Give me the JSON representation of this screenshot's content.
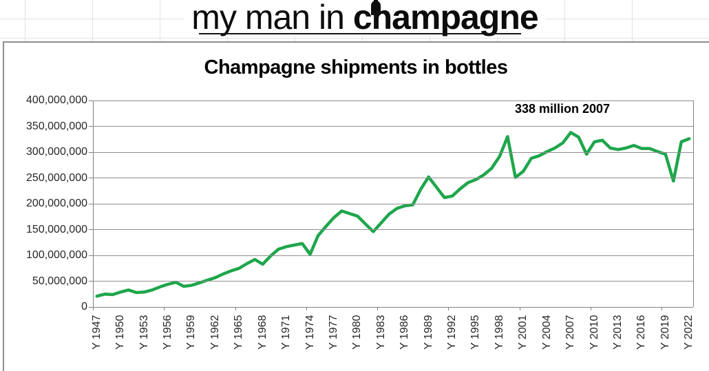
{
  "logo": {
    "prefix": "my man in ",
    "brand_c": "c",
    "brand_h": "h",
    "brand_rest": "ampagne"
  },
  "chart": {
    "title": "Champagne shipments in bottles",
    "annotation_text": "338 million 2007"
  },
  "chart_data": {
    "type": "line",
    "title": "Champagne shipments in bottles",
    "xlabel": "",
    "ylabel": "",
    "unit": "bottles",
    "grid": true,
    "legend": false,
    "line_color": "#1ea64b",
    "y_axis": {
      "min": 0,
      "max": 400000000,
      "step": 50000000
    },
    "y_tick_labels": [
      "400,000,000",
      "350,000,000",
      "300,000,000",
      "250,000,000",
      "200,000,000",
      "150,000,000",
      "100,000,000",
      "50,000,000",
      "0"
    ],
    "x_tick_labels": [
      "Y 1947",
      "Y 1950",
      "Y 1953",
      "Y 1956",
      "Y 1959",
      "Y 1962",
      "Y 1965",
      "Y 1968",
      "Y 1971",
      "Y 1974",
      "Y 1977",
      "Y 1980",
      "Y 1983",
      "Y 1986",
      "Y 1989",
      "Y 1992",
      "Y 1995",
      "Y 1998",
      "Y 2001",
      "Y 2004",
      "Y 2007",
      "Y 2010",
      "Y 2013",
      "Y 2016",
      "Y 2019",
      "Y 2022"
    ],
    "annotation": {
      "text": "338 million 2007",
      "year": 2007,
      "value_millions": 338
    },
    "series": [
      {
        "name": "Champagne shipments",
        "years": [
          1947,
          1948,
          1949,
          1950,
          1951,
          1952,
          1953,
          1954,
          1955,
          1956,
          1957,
          1958,
          1959,
          1960,
          1961,
          1962,
          1963,
          1964,
          1965,
          1966,
          1967,
          1968,
          1969,
          1970,
          1971,
          1972,
          1973,
          1974,
          1975,
          1976,
          1977,
          1978,
          1979,
          1980,
          1981,
          1982,
          1983,
          1984,
          1985,
          1986,
          1987,
          1988,
          1989,
          1990,
          1991,
          1992,
          1993,
          1994,
          1995,
          1996,
          1997,
          1998,
          1999,
          2000,
          2001,
          2002,
          2003,
          2004,
          2005,
          2006,
          2007,
          2008,
          2009,
          2010,
          2011,
          2012,
          2013,
          2014,
          2015,
          2016,
          2017,
          2018,
          2019,
          2020,
          2021,
          2022
        ],
        "values_millions": [
          21,
          25,
          24,
          29,
          33,
          28,
          29,
          33,
          39,
          44,
          48,
          40,
          42,
          47,
          52,
          57,
          64,
          70,
          75,
          84,
          92,
          83,
          99,
          112,
          117,
          120,
          123,
          102,
          138,
          156,
          173,
          186,
          181,
          176,
          161,
          146,
          163,
          180,
          191,
          196,
          198,
          228,
          252,
          232,
          212,
          215,
          229,
          241,
          247,
          256,
          269,
          292,
          330,
          251,
          263,
          288,
          293,
          301,
          308,
          318,
          338,
          329,
          296,
          320,
          323,
          308,
          305,
          308,
          313,
          307,
          307,
          301,
          296,
          244,
          320,
          326
        ]
      }
    ]
  }
}
